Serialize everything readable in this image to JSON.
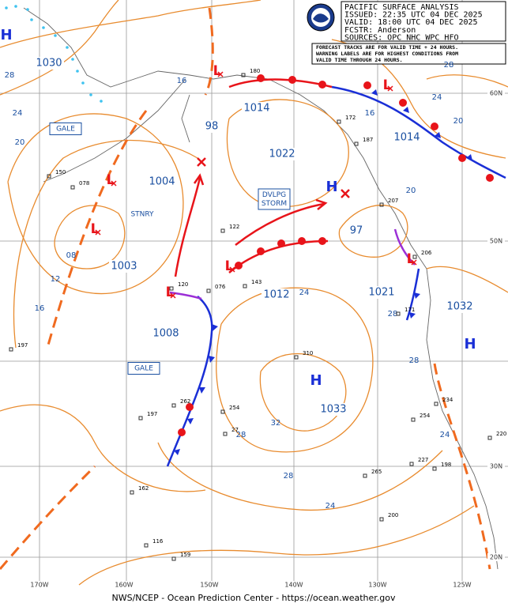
{
  "header": {
    "lines": [
      "PACIFIC SURFACE ANALYSIS",
      "ISSUED: 22:35 UTC 04 DEC 2025",
      "VALID:  18:00 UTC 04 DEC 2025",
      "FCSTR:  Anderson",
      "SOURCES: OPC NHC WPC HFO"
    ]
  },
  "note": [
    "FORECAST TRACKS ARE FOR VALID TIME + 24 HOURS.",
    "WARNING LABELS ARE FOR HIGHEST CONDITIONS FROM",
    "VALID TIME THROUGH 24 HOURS."
  ],
  "pressure_labels": [
    "1030",
    "1014",
    "98",
    "1022",
    "1004",
    "1003",
    "1008",
    "1012",
    "1033",
    "1021",
    "97",
    "1014",
    "1032"
  ],
  "isobar_labels": [
    "28",
    "24",
    "20",
    "16",
    "12",
    "08",
    "16",
    "24",
    "20",
    "16",
    "20",
    "28",
    "24",
    "32",
    "28",
    "28",
    "24",
    "28",
    "24",
    "28"
  ],
  "highs": [
    "H",
    "H",
    "H",
    "H"
  ],
  "lows": [
    "L",
    "L",
    "L",
    "L",
    "L",
    "L",
    "L"
  ],
  "warnings": [
    [
      "GALE"
    ],
    [
      "GALE"
    ],
    [
      "STNRY"
    ],
    [
      "DVLPG",
      "STORM"
    ]
  ],
  "stations": [
    "180",
    "150",
    "078",
    "120",
    "076",
    "143",
    "122",
    "310",
    "262",
    "254",
    "197",
    "162",
    "116",
    "159",
    "265",
    "227",
    "198",
    "234",
    "254",
    "220",
    "200",
    "207",
    "206",
    "187",
    "172",
    "171",
    "197",
    "27"
  ],
  "lat_labels": [
    "60N",
    "50N",
    "30N",
    "20N"
  ],
  "lon_labels": [
    "170W",
    "160W",
    "150W",
    "140W",
    "130W",
    "125W"
  ],
  "footer": "NWS/NCEP - Ocean Prediction Center - https://ocean.weather.gov"
}
